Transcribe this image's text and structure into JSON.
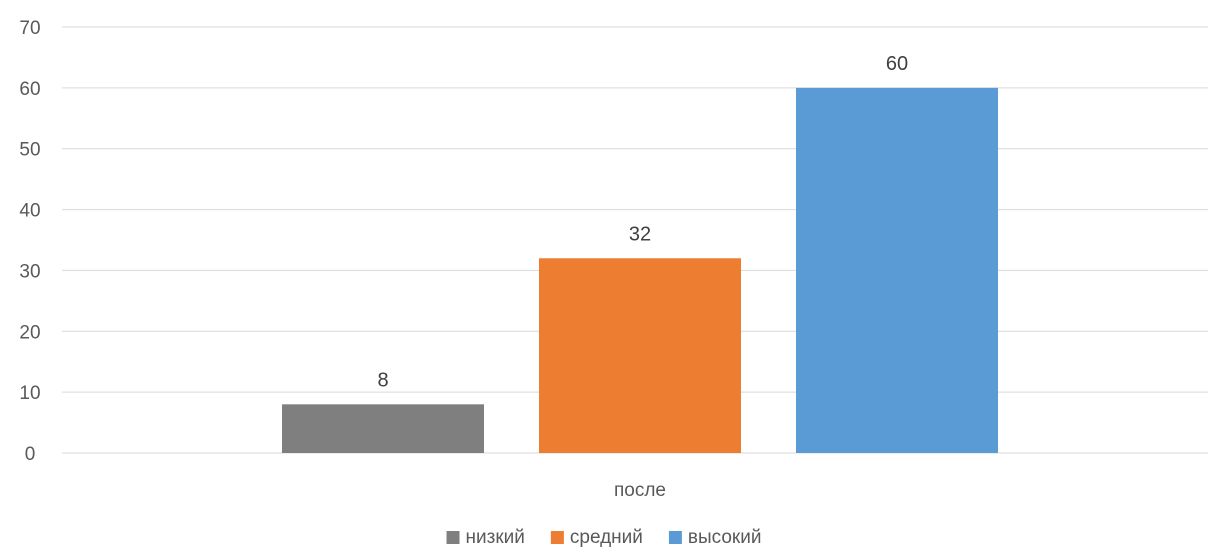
{
  "chart_data": {
    "type": "bar",
    "title": "",
    "xlabel": "",
    "ylabel": "",
    "categories": [
      "после"
    ],
    "ylim": [
      0,
      70
    ],
    "yticks": [
      0,
      10,
      20,
      30,
      40,
      50,
      60,
      70
    ],
    "grid": true,
    "legend_position": "bottom",
    "series": [
      {
        "name": "низкий",
        "values": [
          8
        ],
        "color": "#7f7f7f"
      },
      {
        "name": "средний",
        "values": [
          32
        ],
        "color": "#ed7d31"
      },
      {
        "name": "высокий",
        "values": [
          60
        ],
        "color": "#5b9bd5"
      }
    ]
  }
}
